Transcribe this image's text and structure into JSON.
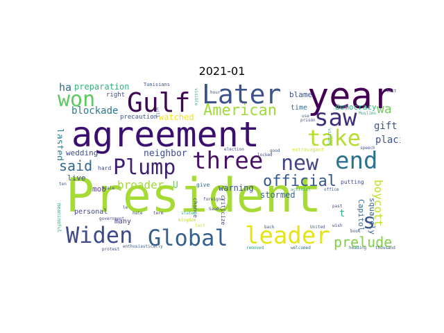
{
  "chart_data": {
    "type": "wordcloud",
    "title": "2021-01",
    "words": [
      {
        "text": "President",
        "color": "#a6db36"
      },
      {
        "text": "agreement",
        "color": "#3b0f70"
      },
      {
        "text": "year",
        "color": "#440154"
      },
      {
        "text": "Later",
        "color": "#3b528b"
      },
      {
        "text": "Gulf",
        "color": "#3e0751"
      },
      {
        "text": "saw",
        "color": "#3f2d7a"
      },
      {
        "text": "three",
        "color": "#471164"
      },
      {
        "text": "take",
        "color": "#b5de2b"
      },
      {
        "text": "end",
        "color": "#2c728e"
      },
      {
        "text": "won",
        "color": "#5ec962"
      },
      {
        "text": "Plump",
        "color": "#3e1f70"
      },
      {
        "text": "new",
        "color": "#414487"
      },
      {
        "text": "Widen",
        "color": "#3e4a89"
      },
      {
        "text": "Global",
        "color": "#35608d"
      },
      {
        "text": "leader",
        "color": "#e5e419"
      },
      {
        "text": "American",
        "color": "#9fda3a"
      },
      {
        "text": "official",
        "color": "#35568c"
      },
      {
        "text": "prelude",
        "color": "#80d048"
      },
      {
        "text": "s",
        "color": "#3b528b"
      },
      {
        "text": "said",
        "color": "#31688e"
      },
      {
        "text": "wa",
        "color": "#6ece58"
      },
      {
        "text": "broader",
        "color": "#9fda3a"
      },
      {
        "text": "boycott",
        "color": "#c2df23"
      },
      {
        "text": "blockade",
        "color": "#2a788e"
      },
      {
        "text": "ha",
        "color": "#31688e"
      },
      {
        "text": "gift",
        "color": "#3b528b"
      },
      {
        "text": "placing",
        "color": "#3b528b"
      },
      {
        "text": "neighbor",
        "color": "#3e4a89"
      },
      {
        "text": "lasted",
        "color": "#287d8e"
      },
      {
        "text": "preparation",
        "color": "#2db27d"
      },
      {
        "text": "watched",
        "color": "#f0e51c"
      },
      {
        "text": "stormed",
        "color": "#31688e"
      },
      {
        "text": "warning",
        "color": "#3b528b"
      },
      {
        "text": "live",
        "color": "#3e4a89"
      },
      {
        "text": "mob",
        "color": "#5e3c99"
      },
      {
        "text": "U",
        "color": "#6ece58"
      },
      {
        "text": "Capitol",
        "color": "#31688e"
      },
      {
        "text": "squarely",
        "color": "#35608d"
      },
      {
        "text": "democracy",
        "color": "#2db27d"
      },
      {
        "text": "wedding",
        "color": "#3e4a89"
      },
      {
        "text": "blame",
        "color": "#3b528b"
      },
      {
        "text": "time",
        "color": "#31688e"
      },
      {
        "text": "personal",
        "color": "#414487"
      },
      {
        "text": "many",
        "color": "#443a83"
      },
      {
        "text": "hard",
        "color": "#3e4a89"
      },
      {
        "text": "give",
        "color": "#31688e"
      },
      {
        "text": "t",
        "color": "#2db27d"
      },
      {
        "text": "right",
        "color": "#3e4a89"
      },
      {
        "text": "precaution",
        "color": "#3b528b"
      },
      {
        "text": "extravagant",
        "color": "#d8e219"
      },
      {
        "text": "putting",
        "color": "#3e4a89"
      },
      {
        "text": "meaningful",
        "color": "#35b779"
      },
      {
        "text": "Tunisians",
        "color": "#3b528b"
      },
      {
        "text": "election",
        "color": "#3e4a89"
      },
      {
        "text": "criticize",
        "color": "#414487"
      },
      {
        "text": "chance",
        "color": "#3b528b"
      },
      {
        "text": "foreigner",
        "color": "#3e4a89"
      },
      {
        "text": "kingdom",
        "color": "#bddf26"
      },
      {
        "text": "Muslims",
        "color": "#2db27d"
      },
      {
        "text": "speech",
        "color": "#3b528b"
      },
      {
        "text": "government",
        "color": "#3e4a89"
      },
      {
        "text": "protest",
        "color": "#3e4a89"
      },
      {
        "text": "enthusiastically",
        "color": "#3b528b"
      },
      {
        "text": "removed",
        "color": "#1fa187"
      },
      {
        "text": "welcomed",
        "color": "#31688e"
      },
      {
        "text": "heading",
        "color": "#31688e"
      },
      {
        "text": "thousand",
        "color": "#3b528b"
      },
      {
        "text": "activist",
        "color": "#2db27d"
      },
      {
        "text": "office",
        "color": "#3b528b"
      },
      {
        "text": "prison",
        "color": "#3e4a89"
      },
      {
        "text": "victory",
        "color": "#2db27d"
      },
      {
        "text": "locked",
        "color": "#3e4a89"
      },
      {
        "text": "good",
        "color": "#3b528b"
      },
      {
        "text": "use",
        "color": "#31688e"
      },
      {
        "text": "text",
        "color": "#3b528b"
      },
      {
        "text": "hour",
        "color": "#3e4a89"
      },
      {
        "text": "visible",
        "color": "#2db27d"
      },
      {
        "text": "will",
        "color": "#3b528b"
      },
      {
        "text": "scale",
        "color": "#3b528b"
      },
      {
        "text": "hate",
        "color": "#3b528b"
      },
      {
        "text": "le",
        "color": "#3b528b"
      },
      {
        "text": "term",
        "color": "#3e4a89"
      },
      {
        "text": "states",
        "color": "#35b779"
      },
      {
        "text": "Saudi",
        "color": "#3e4a89"
      },
      {
        "text": "back",
        "color": "#3b528b"
      },
      {
        "text": "United",
        "color": "#3b528b"
      },
      {
        "text": "wish",
        "color": "#3e4a89"
      },
      {
        "text": "book",
        "color": "#3b528b"
      },
      {
        "text": "past",
        "color": "#3e4a89"
      },
      {
        "text": "ten",
        "color": "#3b528b"
      },
      {
        "text": "last",
        "color": "#d8e219"
      }
    ]
  }
}
